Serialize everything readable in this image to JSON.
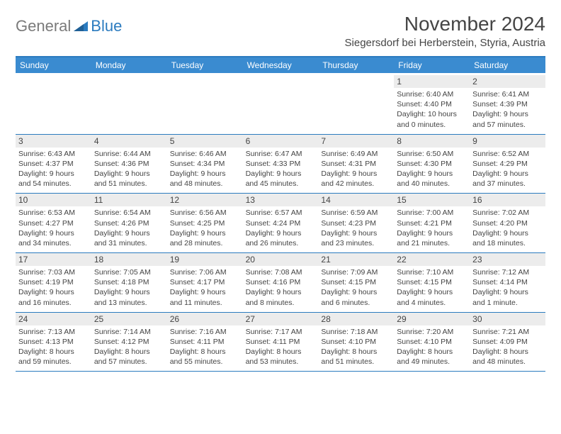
{
  "logo": {
    "text1": "General",
    "text2": "Blue"
  },
  "title": "November 2024",
  "location": "Siegersdorf bei Herberstein, Styria, Austria",
  "weekdays": [
    "Sunday",
    "Monday",
    "Tuesday",
    "Wednesday",
    "Thursday",
    "Friday",
    "Saturday"
  ],
  "colors": {
    "header_bar": "#3a8bd0",
    "border": "#2b7bbf",
    "daynum_bg": "#ececec",
    "text": "#444444",
    "logo_gray": "#7a7a7a",
    "logo_blue": "#2b7bbf"
  },
  "weeks": [
    [
      {
        "n": "",
        "sr": "",
        "ss": "",
        "dl": ""
      },
      {
        "n": "",
        "sr": "",
        "ss": "",
        "dl": ""
      },
      {
        "n": "",
        "sr": "",
        "ss": "",
        "dl": ""
      },
      {
        "n": "",
        "sr": "",
        "ss": "",
        "dl": ""
      },
      {
        "n": "",
        "sr": "",
        "ss": "",
        "dl": ""
      },
      {
        "n": "1",
        "sr": "Sunrise: 6:40 AM",
        "ss": "Sunset: 4:40 PM",
        "dl": "Daylight: 10 hours and 0 minutes."
      },
      {
        "n": "2",
        "sr": "Sunrise: 6:41 AM",
        "ss": "Sunset: 4:39 PM",
        "dl": "Daylight: 9 hours and 57 minutes."
      }
    ],
    [
      {
        "n": "3",
        "sr": "Sunrise: 6:43 AM",
        "ss": "Sunset: 4:37 PM",
        "dl": "Daylight: 9 hours and 54 minutes."
      },
      {
        "n": "4",
        "sr": "Sunrise: 6:44 AM",
        "ss": "Sunset: 4:36 PM",
        "dl": "Daylight: 9 hours and 51 minutes."
      },
      {
        "n": "5",
        "sr": "Sunrise: 6:46 AM",
        "ss": "Sunset: 4:34 PM",
        "dl": "Daylight: 9 hours and 48 minutes."
      },
      {
        "n": "6",
        "sr": "Sunrise: 6:47 AM",
        "ss": "Sunset: 4:33 PM",
        "dl": "Daylight: 9 hours and 45 minutes."
      },
      {
        "n": "7",
        "sr": "Sunrise: 6:49 AM",
        "ss": "Sunset: 4:31 PM",
        "dl": "Daylight: 9 hours and 42 minutes."
      },
      {
        "n": "8",
        "sr": "Sunrise: 6:50 AM",
        "ss": "Sunset: 4:30 PM",
        "dl": "Daylight: 9 hours and 40 minutes."
      },
      {
        "n": "9",
        "sr": "Sunrise: 6:52 AM",
        "ss": "Sunset: 4:29 PM",
        "dl": "Daylight: 9 hours and 37 minutes."
      }
    ],
    [
      {
        "n": "10",
        "sr": "Sunrise: 6:53 AM",
        "ss": "Sunset: 4:27 PM",
        "dl": "Daylight: 9 hours and 34 minutes."
      },
      {
        "n": "11",
        "sr": "Sunrise: 6:54 AM",
        "ss": "Sunset: 4:26 PM",
        "dl": "Daylight: 9 hours and 31 minutes."
      },
      {
        "n": "12",
        "sr": "Sunrise: 6:56 AM",
        "ss": "Sunset: 4:25 PM",
        "dl": "Daylight: 9 hours and 28 minutes."
      },
      {
        "n": "13",
        "sr": "Sunrise: 6:57 AM",
        "ss": "Sunset: 4:24 PM",
        "dl": "Daylight: 9 hours and 26 minutes."
      },
      {
        "n": "14",
        "sr": "Sunrise: 6:59 AM",
        "ss": "Sunset: 4:23 PM",
        "dl": "Daylight: 9 hours and 23 minutes."
      },
      {
        "n": "15",
        "sr": "Sunrise: 7:00 AM",
        "ss": "Sunset: 4:21 PM",
        "dl": "Daylight: 9 hours and 21 minutes."
      },
      {
        "n": "16",
        "sr": "Sunrise: 7:02 AM",
        "ss": "Sunset: 4:20 PM",
        "dl": "Daylight: 9 hours and 18 minutes."
      }
    ],
    [
      {
        "n": "17",
        "sr": "Sunrise: 7:03 AM",
        "ss": "Sunset: 4:19 PM",
        "dl": "Daylight: 9 hours and 16 minutes."
      },
      {
        "n": "18",
        "sr": "Sunrise: 7:05 AM",
        "ss": "Sunset: 4:18 PM",
        "dl": "Daylight: 9 hours and 13 minutes."
      },
      {
        "n": "19",
        "sr": "Sunrise: 7:06 AM",
        "ss": "Sunset: 4:17 PM",
        "dl": "Daylight: 9 hours and 11 minutes."
      },
      {
        "n": "20",
        "sr": "Sunrise: 7:08 AM",
        "ss": "Sunset: 4:16 PM",
        "dl": "Daylight: 9 hours and 8 minutes."
      },
      {
        "n": "21",
        "sr": "Sunrise: 7:09 AM",
        "ss": "Sunset: 4:15 PM",
        "dl": "Daylight: 9 hours and 6 minutes."
      },
      {
        "n": "22",
        "sr": "Sunrise: 7:10 AM",
        "ss": "Sunset: 4:15 PM",
        "dl": "Daylight: 9 hours and 4 minutes."
      },
      {
        "n": "23",
        "sr": "Sunrise: 7:12 AM",
        "ss": "Sunset: 4:14 PM",
        "dl": "Daylight: 9 hours and 1 minute."
      }
    ],
    [
      {
        "n": "24",
        "sr": "Sunrise: 7:13 AM",
        "ss": "Sunset: 4:13 PM",
        "dl": "Daylight: 8 hours and 59 minutes."
      },
      {
        "n": "25",
        "sr": "Sunrise: 7:14 AM",
        "ss": "Sunset: 4:12 PM",
        "dl": "Daylight: 8 hours and 57 minutes."
      },
      {
        "n": "26",
        "sr": "Sunrise: 7:16 AM",
        "ss": "Sunset: 4:11 PM",
        "dl": "Daylight: 8 hours and 55 minutes."
      },
      {
        "n": "27",
        "sr": "Sunrise: 7:17 AM",
        "ss": "Sunset: 4:11 PM",
        "dl": "Daylight: 8 hours and 53 minutes."
      },
      {
        "n": "28",
        "sr": "Sunrise: 7:18 AM",
        "ss": "Sunset: 4:10 PM",
        "dl": "Daylight: 8 hours and 51 minutes."
      },
      {
        "n": "29",
        "sr": "Sunrise: 7:20 AM",
        "ss": "Sunset: 4:10 PM",
        "dl": "Daylight: 8 hours and 49 minutes."
      },
      {
        "n": "30",
        "sr": "Sunrise: 7:21 AM",
        "ss": "Sunset: 4:09 PM",
        "dl": "Daylight: 8 hours and 48 minutes."
      }
    ]
  ]
}
